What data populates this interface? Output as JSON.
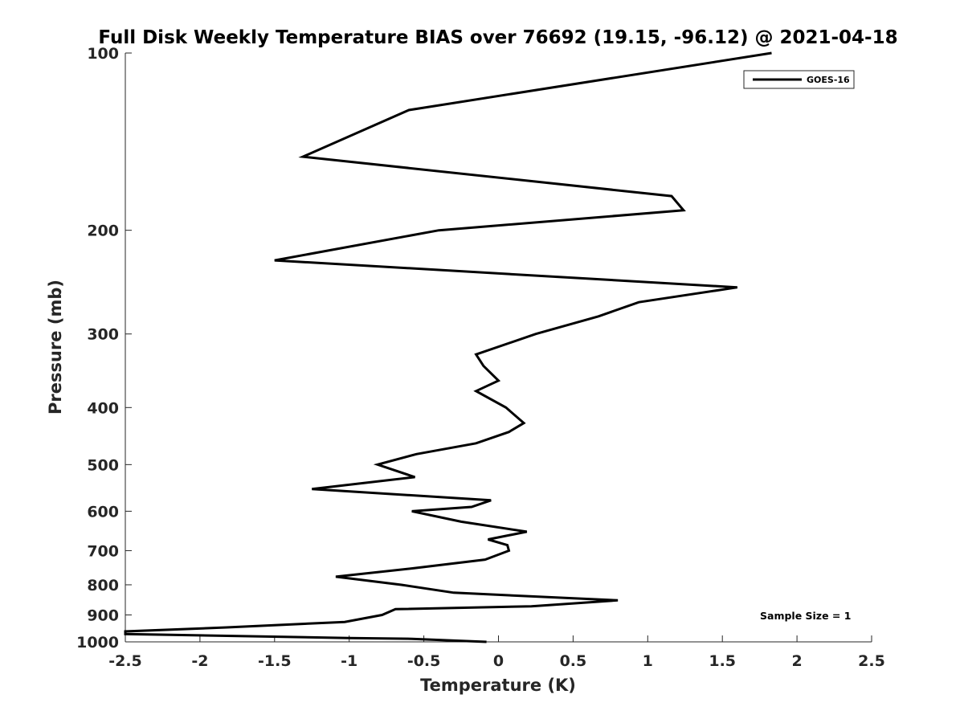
{
  "chart_data": {
    "type": "line",
    "title": "Full Disk Weekly Temperature BIAS over 76692 (19.15, -96.12) @ 2021-04-18",
    "xlabel": "Temperature (K)",
    "ylabel": "Pressure (mb)",
    "xlim": [
      -2.5,
      2.5
    ],
    "ylim": [
      100,
      1000
    ],
    "yscale": "log",
    "yreversed": true,
    "x_ticks": [
      -2.5,
      -2,
      -1.5,
      -1,
      -0.5,
      0,
      0.5,
      1,
      1.5,
      2,
      2.5
    ],
    "x_tick_labels": [
      "-2.5",
      "-2",
      "-1.5",
      "-1",
      "-0.5",
      "0",
      "0.5",
      "1",
      "1.5",
      "2",
      "2.5"
    ],
    "y_ticks": [
      100,
      200,
      300,
      400,
      500,
      600,
      700,
      800,
      900,
      1000
    ],
    "y_tick_labels": [
      "100",
      "200",
      "300",
      "400",
      "500",
      "600",
      "700",
      "800",
      "900",
      "1000"
    ],
    "grid": false,
    "legend": {
      "placement": "top-right",
      "entries": [
        "GOES-16"
      ]
    },
    "annotation": "Sample Size = 1",
    "series": [
      {
        "name": "GOES-16",
        "color": "#000000",
        "points": [
          {
            "x": 1.83,
            "p": 100
          },
          {
            "x": -0.6,
            "p": 125
          },
          {
            "x": -1.31,
            "p": 150
          },
          {
            "x": 1.16,
            "p": 175
          },
          {
            "x": 1.24,
            "p": 185
          },
          {
            "x": -0.4,
            "p": 200
          },
          {
            "x": -1.5,
            "p": 225
          },
          {
            "x": 1.6,
            "p": 250
          },
          {
            "x": 0.94,
            "p": 265
          },
          {
            "x": 0.67,
            "p": 280
          },
          {
            "x": 0.25,
            "p": 300
          },
          {
            "x": -0.15,
            "p": 325
          },
          {
            "x": -0.1,
            "p": 340
          },
          {
            "x": 0.0,
            "p": 360
          },
          {
            "x": -0.15,
            "p": 375
          },
          {
            "x": 0.05,
            "p": 400
          },
          {
            "x": 0.17,
            "p": 425
          },
          {
            "x": 0.07,
            "p": 440
          },
          {
            "x": -0.15,
            "p": 460
          },
          {
            "x": -0.55,
            "p": 480
          },
          {
            "x": -0.81,
            "p": 500
          },
          {
            "x": -0.56,
            "p": 525
          },
          {
            "x": -1.25,
            "p": 550
          },
          {
            "x": -0.05,
            "p": 575
          },
          {
            "x": -0.18,
            "p": 590
          },
          {
            "x": -0.58,
            "p": 600
          },
          {
            "x": -0.25,
            "p": 625
          },
          {
            "x": 0.19,
            "p": 650
          },
          {
            "x": -0.07,
            "p": 670
          },
          {
            "x": 0.06,
            "p": 685
          },
          {
            "x": 0.07,
            "p": 700
          },
          {
            "x": -0.09,
            "p": 725
          },
          {
            "x": -0.57,
            "p": 750
          },
          {
            "x": -1.09,
            "p": 775
          },
          {
            "x": -0.65,
            "p": 800
          },
          {
            "x": -0.3,
            "p": 825
          },
          {
            "x": 0.8,
            "p": 850
          },
          {
            "x": 0.22,
            "p": 870
          },
          {
            "x": -0.69,
            "p": 880
          },
          {
            "x": -0.78,
            "p": 900
          },
          {
            "x": -1.03,
            "p": 925
          },
          {
            "x": -1.82,
            "p": 945
          },
          {
            "x": -2.5,
            "p": 960
          },
          {
            "x": -2.5,
            "p": 970
          },
          {
            "x": -1.0,
            "p": 985
          },
          {
            "x": -0.58,
            "p": 988
          },
          {
            "x": -0.08,
            "p": 1000
          }
        ]
      }
    ]
  }
}
